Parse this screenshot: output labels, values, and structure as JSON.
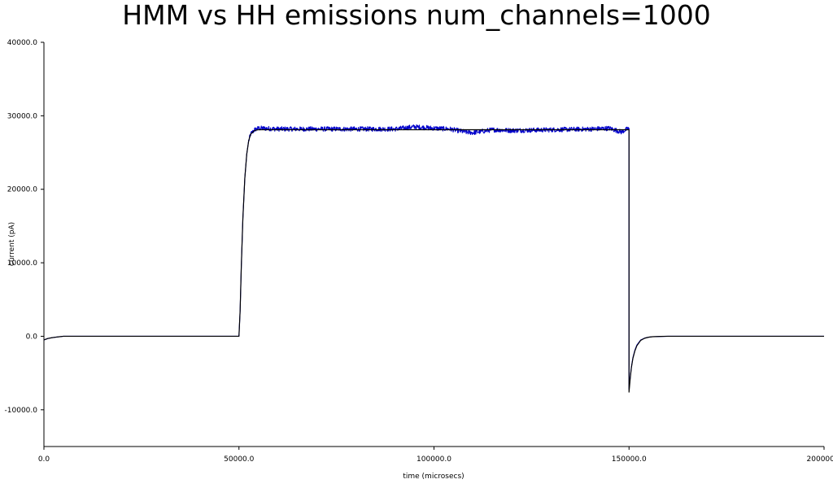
{
  "chart_data": {
    "type": "line",
    "title": "HMM vs HH emissions num_channels=1000",
    "xlabel": "time (microsecs)",
    "ylabel": "current (pA)",
    "xlim": [
      0,
      200000
    ],
    "ylim": [
      -15000,
      40000
    ],
    "x_ticks": [
      "0.0",
      "50000.0",
      "100000.0",
      "150000.0",
      "200000.0"
    ],
    "y_ticks": [
      "-10000.0",
      "0.0",
      "10000.0",
      "20000.0",
      "30000.0",
      "40000.0"
    ],
    "grid": false,
    "legend": "none",
    "series": [
      {
        "color": "#0000cc",
        "style": "noisy",
        "x": [
          0,
          500,
          1000,
          2000,
          3000,
          4000,
          5000,
          50000,
          50300,
          50600,
          51000,
          51500,
          52000,
          52500,
          53000,
          54000,
          55000,
          56000,
          60000,
          70000,
          80000,
          90000,
          95000,
          100000,
          104000,
          108000,
          110000,
          115000,
          120000,
          130000,
          140000,
          145000,
          148000,
          150000,
          150000,
          150300,
          150600,
          151000,
          151500,
          152000,
          153000,
          154000,
          155000,
          156000,
          158000,
          160000,
          180000,
          200000
        ],
        "y": [
          -500,
          -400,
          -300,
          -200,
          -120,
          -60,
          0,
          0,
          3500,
          9500,
          16000,
          21500,
          24800,
          26600,
          27500,
          28100,
          28300,
          28300,
          28200,
          28200,
          28200,
          28200,
          28500,
          28300,
          28200,
          27800,
          27700,
          28100,
          28000,
          28100,
          28200,
          28300,
          27800,
          28300,
          -7200,
          -5600,
          -4200,
          -2900,
          -1900,
          -1200,
          -500,
          -250,
          -120,
          -60,
          -20,
          0,
          0,
          0
        ]
      },
      {
        "color": "#000000",
        "style": "smooth",
        "x": [
          0,
          500,
          1000,
          2000,
          3000,
          4000,
          5000,
          50000,
          50300,
          50600,
          51000,
          51500,
          52000,
          52500,
          53000,
          54000,
          55000,
          56000,
          60000,
          100000,
          150000,
          150000,
          150300,
          150600,
          151000,
          151500,
          152000,
          153000,
          154000,
          155000,
          156000,
          158000,
          160000,
          200000
        ],
        "y": [
          -500,
          -400,
          -300,
          -200,
          -120,
          -60,
          0,
          0,
          3500,
          9500,
          16000,
          21500,
          24800,
          26600,
          27500,
          28000,
          28100,
          28100,
          28100,
          28100,
          28100,
          -7600,
          -5800,
          -4300,
          -3000,
          -2000,
          -1300,
          -550,
          -270,
          -130,
          -60,
          -20,
          0,
          0
        ]
      }
    ]
  }
}
